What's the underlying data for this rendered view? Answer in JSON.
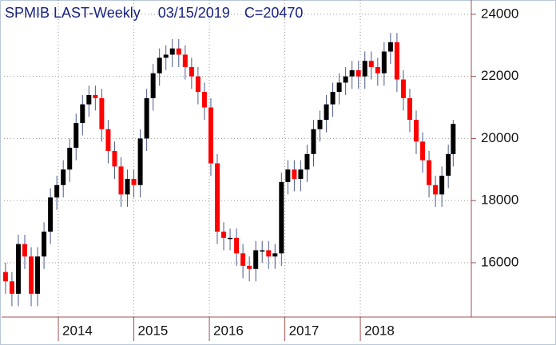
{
  "chart_data": {
    "type": "candlestick",
    "title": "SPMIB LAST-Weekly",
    "date": "03/15/2019",
    "last_label": "C=20470",
    "x": [
      2013.3,
      2013.385,
      2013.47,
      2013.555,
      2013.64,
      2013.725,
      2013.81,
      2013.895,
      2013.98,
      2014.065,
      2014.15,
      2014.235,
      2014.32,
      2014.405,
      2014.49,
      2014.575,
      2014.66,
      2014.745,
      2014.83,
      2014.915,
      2015.0,
      2015.085,
      2015.17,
      2015.255,
      2015.34,
      2015.425,
      2015.51,
      2015.595,
      2015.68,
      2015.765,
      2015.85,
      2015.935,
      2016.02,
      2016.105,
      2016.19,
      2016.275,
      2016.36,
      2016.445,
      2016.53,
      2016.615,
      2016.7,
      2016.785,
      2016.87,
      2016.955,
      2017.04,
      2017.125,
      2017.21,
      2017.295,
      2017.38,
      2017.465,
      2017.55,
      2017.635,
      2017.72,
      2017.805,
      2017.89,
      2017.975,
      2018.06,
      2018.145,
      2018.23,
      2018.315,
      2018.4,
      2018.485,
      2018.57,
      2018.655,
      2018.74,
      2018.825,
      2018.91,
      2018.995,
      2019.08,
      2019.165,
      2019.23
    ],
    "open": [
      15700,
      15400,
      15000,
      16600,
      16200,
      15000,
      16200,
      17000,
      18100,
      18500,
      19000,
      19700,
      20500,
      21100,
      21400,
      21300,
      20300,
      19600,
      19100,
      18200,
      18700,
      18500,
      20000,
      21300,
      22100,
      22600,
      22700,
      22900,
      22700,
      22300,
      22000,
      21500,
      21000,
      19200,
      17000,
      16800,
      16800,
      16300,
      15900,
      15800,
      16400,
      16400,
      16200,
      16300,
      18600,
      19000,
      18700,
      19000,
      19500,
      20300,
      20600,
      21100,
      21500,
      21800,
      22000,
      22200,
      22000,
      22500,
      22300,
      22100,
      22800,
      23100,
      21900,
      21300,
      20600,
      19900,
      19300,
      18500,
      18200,
      18800,
      19500
    ],
    "high": [
      16000,
      15700,
      16900,
      16900,
      16500,
      16500,
      17300,
      18400,
      18800,
      19300,
      20000,
      20800,
      21400,
      21700,
      21700,
      21600,
      20600,
      19900,
      19400,
      19000,
      19000,
      20300,
      21600,
      22400,
      22900,
      23000,
      23200,
      23200,
      23000,
      22600,
      22300,
      21800,
      21300,
      19500,
      17300,
      17100,
      17100,
      16600,
      16200,
      16700,
      16700,
      16700,
      16600,
      18900,
      19300,
      19300,
      19300,
      19800,
      20600,
      20900,
      21400,
      21800,
      22100,
      22300,
      22500,
      22500,
      22800,
      22800,
      22600,
      23100,
      23400,
      23400,
      22200,
      21600,
      20900,
      20200,
      19600,
      18800,
      19100,
      19800,
      20600
    ],
    "low": [
      15000,
      14600,
      14600,
      15800,
      14600,
      14600,
      15800,
      16600,
      17700,
      18100,
      18600,
      19300,
      20100,
      20700,
      20900,
      19900,
      19200,
      18700,
      17800,
      17800,
      18100,
      18100,
      19600,
      20900,
      21700,
      22200,
      22300,
      22300,
      21900,
      21600,
      21100,
      20600,
      18800,
      16600,
      16400,
      16400,
      15900,
      15500,
      15400,
      15400,
      16000,
      15800,
      15800,
      15900,
      18200,
      18300,
      18300,
      18600,
      19100,
      19900,
      20200,
      20700,
      21100,
      21400,
      21600,
      21600,
      21600,
      21900,
      21700,
      21700,
      22400,
      21500,
      20900,
      20200,
      19500,
      18900,
      18100,
      17800,
      17800,
      18400,
      19100
    ],
    "close": [
      15400,
      15000,
      16600,
      16200,
      15000,
      16200,
      17000,
      18100,
      18500,
      19000,
      19700,
      20500,
      21100,
      21400,
      21300,
      20300,
      19600,
      19100,
      18200,
      18700,
      18500,
      20000,
      21300,
      22100,
      22600,
      22700,
      22900,
      22700,
      22300,
      22000,
      21500,
      21000,
      19200,
      17000,
      16800,
      16800,
      16300,
      15900,
      15800,
      16400,
      16400,
      16200,
      16300,
      18600,
      19000,
      18700,
      19000,
      19500,
      20300,
      20600,
      21100,
      21500,
      21800,
      22000,
      22200,
      22000,
      22500,
      22300,
      22100,
      22800,
      23100,
      21900,
      21300,
      20600,
      19900,
      19300,
      18500,
      18200,
      18800,
      19500,
      20470
    ],
    "up_color": "#000000",
    "down_color": "#ff0000",
    "wick_color": "#4a5a8a",
    "xlim": [
      2013.28,
      2019.47
    ],
    "xticks": [
      2014,
      2015,
      2016,
      2017,
      2018
    ],
    "ylim": [
      14250,
      24460
    ],
    "yticks": [
      16000,
      18000,
      20000,
      22000,
      24000
    ],
    "grid": true
  }
}
